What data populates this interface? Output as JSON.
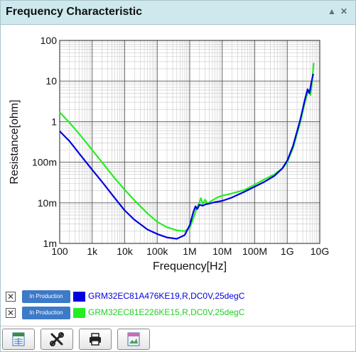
{
  "window": {
    "title": "Frequency Characteristic",
    "collapse_icon": "caret-up-icon",
    "close_icon": "close-icon"
  },
  "chart_data": {
    "type": "line",
    "xlabel": "Frequency[Hz]",
    "ylabel": "Resistance[ohm]",
    "x_scale": "log",
    "y_scale": "log",
    "xlim": [
      100,
      10000000000
    ],
    "ylim": [
      0.001,
      100
    ],
    "grid": true,
    "x_ticks": [
      {
        "value": 100,
        "label": "100"
      },
      {
        "value": 1000,
        "label": "1k"
      },
      {
        "value": 10000,
        "label": "10k"
      },
      {
        "value": 100000,
        "label": "100k"
      },
      {
        "value": 1000000,
        "label": "1M"
      },
      {
        "value": 10000000,
        "label": "10M"
      },
      {
        "value": 100000000,
        "label": "100M"
      },
      {
        "value": 1000000000,
        "label": "1G"
      },
      {
        "value": 10000000000,
        "label": "10G"
      }
    ],
    "y_ticks": [
      {
        "value": 0.001,
        "label": "1m"
      },
      {
        "value": 0.01,
        "label": "10m"
      },
      {
        "value": 0.1,
        "label": "100m"
      },
      {
        "value": 1,
        "label": "1"
      },
      {
        "value": 10,
        "label": "10"
      },
      {
        "value": 100,
        "label": "100"
      }
    ],
    "series": [
      {
        "name": "GRM32EC81A476KE19,R,DC0V,25degC",
        "color": "#0000e0",
        "points": [
          [
            100,
            0.58
          ],
          [
            200,
            0.33
          ],
          [
            500,
            0.13
          ],
          [
            1000,
            0.065
          ],
          [
            2000,
            0.033
          ],
          [
            5000,
            0.013
          ],
          [
            10000,
            0.0065
          ],
          [
            20000,
            0.0038
          ],
          [
            50000,
            0.0022
          ],
          [
            100000,
            0.0017
          ],
          [
            200000,
            0.0014
          ],
          [
            400000,
            0.0013
          ],
          [
            700000,
            0.0016
          ],
          [
            1000000,
            0.0028
          ],
          [
            1300000,
            0.006
          ],
          [
            1500000,
            0.0082
          ],
          [
            1700000,
            0.007
          ],
          [
            2000000,
            0.009
          ],
          [
            2500000,
            0.0085
          ],
          [
            3000000,
            0.0091
          ],
          [
            4000000,
            0.0096
          ],
          [
            6000000,
            0.0104
          ],
          [
            10000000,
            0.0112
          ],
          [
            20000000,
            0.0135
          ],
          [
            50000000,
            0.019
          ],
          [
            100000000,
            0.025
          ],
          [
            200000000,
            0.033
          ],
          [
            400000000,
            0.046
          ],
          [
            700000000,
            0.07
          ],
          [
            1000000000,
            0.11
          ],
          [
            1500000000,
            0.25
          ],
          [
            2500000000,
            1.1
          ],
          [
            3500000000,
            3.5
          ],
          [
            4200000000,
            6.3
          ],
          [
            4800000000,
            5.0
          ],
          [
            5500000000,
            9.0
          ],
          [
            6300000000,
            15
          ]
        ]
      },
      {
        "name": "GRM32EC81E226KE15,R,DC0V,25degC",
        "color": "#22ee22",
        "points": [
          [
            100,
            1.7
          ],
          [
            200,
            0.95
          ],
          [
            500,
            0.4
          ],
          [
            1000,
            0.2
          ],
          [
            2000,
            0.1
          ],
          [
            5000,
            0.04
          ],
          [
            10000,
            0.021
          ],
          [
            20000,
            0.0115
          ],
          [
            50000,
            0.0055
          ],
          [
            100000,
            0.0034
          ],
          [
            200000,
            0.0025
          ],
          [
            400000,
            0.0021
          ],
          [
            700000,
            0.002
          ],
          [
            1000000,
            0.0024
          ],
          [
            1300000,
            0.0042
          ],
          [
            1600000,
            0.007
          ],
          [
            1900000,
            0.0095
          ],
          [
            2200000,
            0.013
          ],
          [
            2500000,
            0.0095
          ],
          [
            3000000,
            0.012
          ],
          [
            3500000,
            0.0095
          ],
          [
            4500000,
            0.011
          ],
          [
            7000000,
            0.0135
          ],
          [
            10000000,
            0.015
          ],
          [
            20000000,
            0.017
          ],
          [
            50000000,
            0.021
          ],
          [
            100000000,
            0.028
          ],
          [
            200000000,
            0.038
          ],
          [
            400000000,
            0.05
          ],
          [
            700000000,
            0.07
          ],
          [
            1000000000,
            0.1
          ],
          [
            1500000000,
            0.22
          ],
          [
            2500000000,
            0.95
          ],
          [
            3500000000,
            3.0
          ],
          [
            4500000000,
            6.0
          ],
          [
            5200000000,
            4.5
          ],
          [
            5900000000,
            11
          ],
          [
            6500000000,
            28
          ]
        ]
      }
    ]
  },
  "legend": [
    {
      "check": "✕",
      "badge": "In Production",
      "label": "GRM32EC81A476KE19,R,DC0V,25degC",
      "color": "#0000e0"
    },
    {
      "check": "✕",
      "badge": "In Production",
      "label": "GRM32EC81E226KE15,R,DC0V,25degC",
      "color": "#22ee22"
    }
  ],
  "toolbar": [
    {
      "name": "csv-export-button",
      "icon": "csv-icon"
    },
    {
      "name": "settings-button",
      "icon": "tools-icon"
    },
    {
      "name": "print-button",
      "icon": "printer-icon"
    },
    {
      "name": "png-export-button",
      "icon": "png-icon"
    }
  ]
}
